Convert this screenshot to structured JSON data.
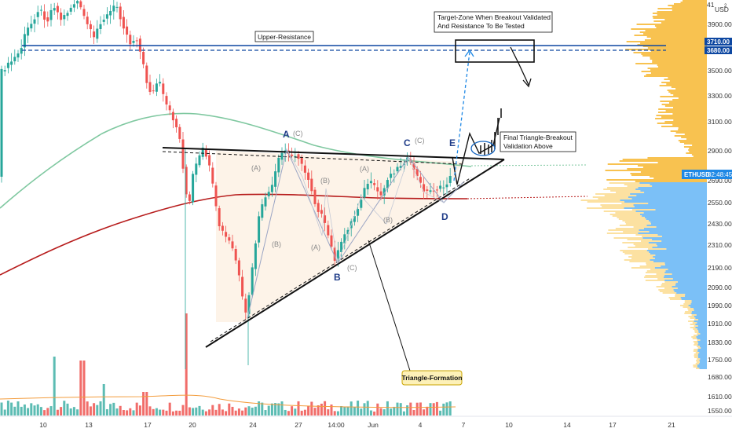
{
  "chart_data": {
    "type": "candlestick",
    "symbol": "ETHUSD",
    "currency_label": "USD",
    "currency_digit": "2",
    "countdown": "02:48:45",
    "x_ticks": [
      "10",
      "13",
      "17",
      "20",
      "24",
      "27",
      "14:00",
      "Jun",
      "4",
      "7",
      "10",
      "14",
      "17",
      "21"
    ],
    "y_ticks": [
      1550,
      1610,
      1680,
      1750,
      1830,
      1910,
      1990,
      2090,
      2190,
      2310,
      2430,
      2550,
      2690,
      2900,
      3100,
      3300,
      3500,
      3680,
      3710,
      3900
    ],
    "y_top_partial": "41",
    "y_tag_labels": [
      "3710.00",
      "3680.00"
    ],
    "current_price_label": "ETHUSD",
    "upper_resistance": 3680,
    "annotations": {
      "upper_resistance": "Upper-Resistance",
      "target_zone_line1": "Target-Zone When Breakout Validated",
      "target_zone_line2": "And Resistance To Be Tested",
      "final_breakout_line1": "Final Triangle-Breakout",
      "final_breakout_line2": "Validation Above",
      "triangle_formation": "Triangle-Formation"
    },
    "wave_labels_main": [
      "A",
      "B",
      "C",
      "D",
      "E"
    ],
    "wave_labels_sub": [
      "(A)",
      "(B)",
      "(C)"
    ],
    "colors": {
      "up": "#26a69a",
      "down": "#ef5350",
      "volume_up": "#26a69a",
      "volume_down": "#ef5350",
      "ma_green": "#7fc8a0",
      "ma_red": "#b71c1c",
      "volume_ma": "#f39c3c",
      "resistance": "#0d47a1",
      "profile_yellow": "#f7b731",
      "profile_blue": "#64b5f6",
      "triangle_fill": "#fdf1e4"
    }
  }
}
